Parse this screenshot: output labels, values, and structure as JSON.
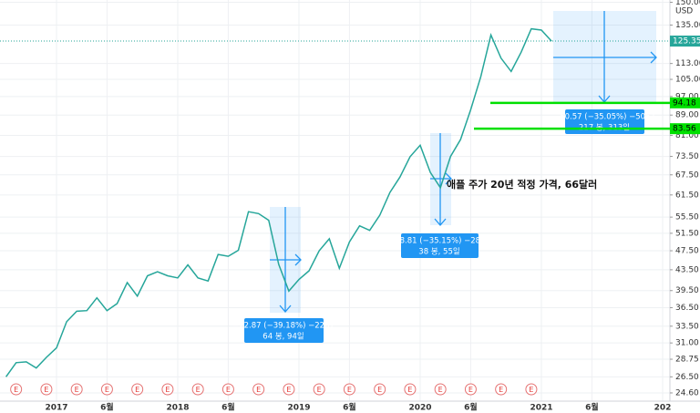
{
  "chart_data": {
    "type": "line",
    "currency": "USD",
    "annotation": "애플 주가 20년 적정 가격, 66달러",
    "x": [
      "2016-08",
      "2016-09",
      "2016-10",
      "2016-11",
      "2016-12",
      "2017-01",
      "2017-02",
      "2017-03",
      "2017-04",
      "2017-05",
      "2017-06",
      "2017-07",
      "2017-08",
      "2017-09",
      "2017-10",
      "2017-11",
      "2017-12",
      "2018-01",
      "2018-02",
      "2018-03",
      "2018-04",
      "2018-05",
      "2018-06",
      "2018-07",
      "2018-08",
      "2018-09",
      "2018-10",
      "2018-11",
      "2018-12",
      "2019-01",
      "2019-02",
      "2019-03",
      "2019-04",
      "2019-05",
      "2019-06",
      "2019-07",
      "2019-08",
      "2019-09",
      "2019-10",
      "2019-11",
      "2019-12",
      "2020-01",
      "2020-02",
      "2020-03",
      "2020-04",
      "2020-05",
      "2020-06",
      "2020-07",
      "2020-08",
      "2020-09",
      "2020-10",
      "2020-11",
      "2020-12",
      "2021-01",
      "2021-02"
    ],
    "series": [
      {
        "name": "AAPL",
        "color": "#26a69a",
        "values": [
          26.5,
          28.3,
          28.4,
          27.6,
          29.0,
          30.3,
          34.2,
          35.9,
          36.0,
          38.2,
          36.0,
          37.2,
          41.0,
          38.5,
          42.3,
          43.1,
          42.3,
          41.9,
          44.5,
          41.9,
          41.3,
          46.7,
          46.3,
          47.6,
          56.9,
          56.4,
          54.7,
          44.6,
          39.4,
          41.6,
          43.3,
          47.5,
          50.2,
          43.8,
          49.5,
          53.3,
          52.2,
          56.0,
          62.2,
          66.8,
          73.4,
          77.4,
          68.3,
          63.6,
          73.5,
          79.5,
          91.2,
          106.3,
          129.0,
          115.8,
          108.9,
          119.1,
          132.7,
          131.9,
          125.35
        ]
      }
    ],
    "ylim": [
      23.68,
      151.6
    ],
    "log_scale": true,
    "grid": true,
    "yticks": [
      {
        "value": 24.6,
        "label": "24.60"
      },
      {
        "value": 26.5,
        "label": "26.50"
      },
      {
        "value": 28.75,
        "label": "28.75"
      },
      {
        "value": 31,
        "label": "31.00"
      },
      {
        "value": 33.5,
        "label": "33.50"
      },
      {
        "value": 36.5,
        "label": "36.50"
      },
      {
        "value": 39.5,
        "label": "39.50"
      },
      {
        "value": 43.5,
        "label": "43.50"
      },
      {
        "value": 47.5,
        "label": "47.50"
      },
      {
        "value": 51.5,
        "label": "51.50"
      },
      {
        "value": 55.5,
        "label": "55.50"
      },
      {
        "value": 61.5,
        "label": "61.50"
      },
      {
        "value": 67.5,
        "label": "67.50"
      },
      {
        "value": 73.5,
        "label": "73.50"
      },
      {
        "value": 81,
        "label": "81.00"
      },
      {
        "value": 89,
        "label": "89.00"
      },
      {
        "value": 97,
        "label": "97.00"
      },
      {
        "value": 105,
        "label": "105.00"
      },
      {
        "value": 113,
        "label": "113.00"
      },
      {
        "value": 135,
        "label": "135.00"
      },
      {
        "value": 150,
        "label": "150.00"
      }
    ],
    "xticks": [
      {
        "value": "2017-01",
        "label": "2017"
      },
      {
        "value": "2017-06",
        "label": "6월"
      },
      {
        "value": "2018-01",
        "label": "2018"
      },
      {
        "value": "2018-06",
        "label": "6월"
      },
      {
        "value": "2019-01",
        "label": "2019"
      },
      {
        "value": "2019-06",
        "label": "6월"
      },
      {
        "value": "2020-01",
        "label": "2020"
      },
      {
        "value": "2020-06",
        "label": "6월"
      },
      {
        "value": "2021-01",
        "label": "2021"
      },
      {
        "value": "2021-06",
        "label": "6월"
      },
      {
        "value": "2022-01",
        "label": "202"
      }
    ],
    "last_price": {
      "value": 125.35,
      "label": "125.35",
      "color": "#26a69a"
    },
    "levels": [
      {
        "value": 94.18,
        "label": "94.18",
        "color": "#00e000"
      },
      {
        "value": 83.56,
        "label": "83.56",
        "color": "#00e000"
      }
    ],
    "measurements": [
      {
        "change": "−22.87 (−39.18%) −2287",
        "span": "64 봉, 94일"
      },
      {
        "change": "−28.81 (−35.15%) −2881",
        "span": "38 봉, 55일"
      },
      {
        "change": "−50.57 (−35.05%) −5057",
        "span": "217 봉, 313일"
      }
    ],
    "earnings_label": "E"
  }
}
